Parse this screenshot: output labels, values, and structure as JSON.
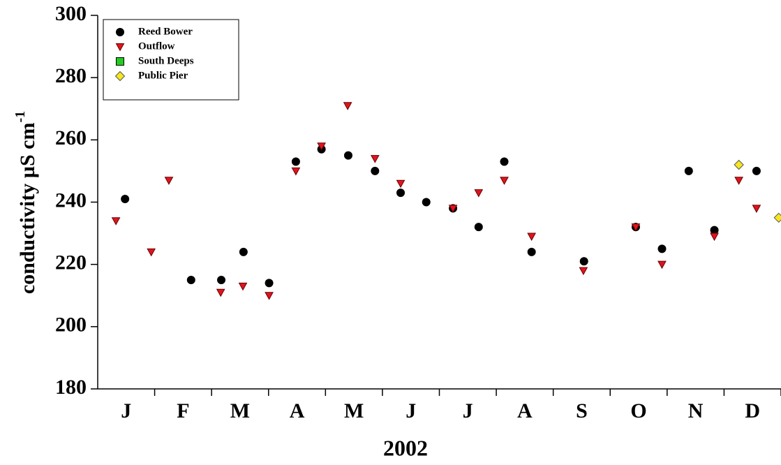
{
  "chart_data": {
    "type": "scatter",
    "ylabel": "conductivity µS cm",
    "ylabel_superscript": "-1",
    "xlabel": "2002",
    "categories": [
      "J",
      "F",
      "M",
      "A",
      "M",
      "J",
      "J",
      "A",
      "S",
      "O",
      "N",
      "D"
    ],
    "xlim": [
      0,
      12
    ],
    "ylim": [
      180,
      300
    ],
    "yticks": [
      180,
      200,
      220,
      240,
      260,
      280,
      300
    ],
    "legend": "top-left",
    "series": [
      {
        "name": "Reed Bower",
        "color": "#000000",
        "marker": "circle",
        "x": [
          0.48,
          1.64,
          2.17,
          2.56,
          3.01,
          3.48,
          3.93,
          4.4,
          4.87,
          5.32,
          5.77,
          6.24,
          6.69,
          7.14,
          7.62,
          8.54,
          9.45,
          9.91,
          10.38,
          10.83,
          11.57
        ],
        "values": [
          241,
          215,
          215,
          224,
          214,
          253,
          257,
          255,
          250,
          243,
          240,
          238,
          232,
          253,
          224,
          221,
          232,
          225,
          250,
          231,
          250
        ]
      },
      {
        "name": "Outflow",
        "color": "#e0141e",
        "marker": "triangle-down",
        "x": [
          0.32,
          0.94,
          1.25,
          2.16,
          2.55,
          3.01,
          3.48,
          3.93,
          4.39,
          4.87,
          5.32,
          6.24,
          6.69,
          7.14,
          7.62,
          8.53,
          9.45,
          9.91,
          10.83,
          11.26,
          11.57
        ],
        "values": [
          234,
          224,
          247,
          211,
          213,
          210,
          250,
          258,
          271,
          254,
          246,
          238,
          243,
          247,
          229,
          218,
          232,
          220,
          229,
          247,
          238
        ]
      },
      {
        "name": "South Deeps",
        "color": "#22cc22",
        "marker": "square",
        "x": [],
        "values": []
      },
      {
        "name": "Public Pier",
        "color": "#f5e61e",
        "marker": "diamond",
        "x": [
          11.26,
          11.96
        ],
        "values": [
          252,
          235
        ]
      }
    ]
  }
}
